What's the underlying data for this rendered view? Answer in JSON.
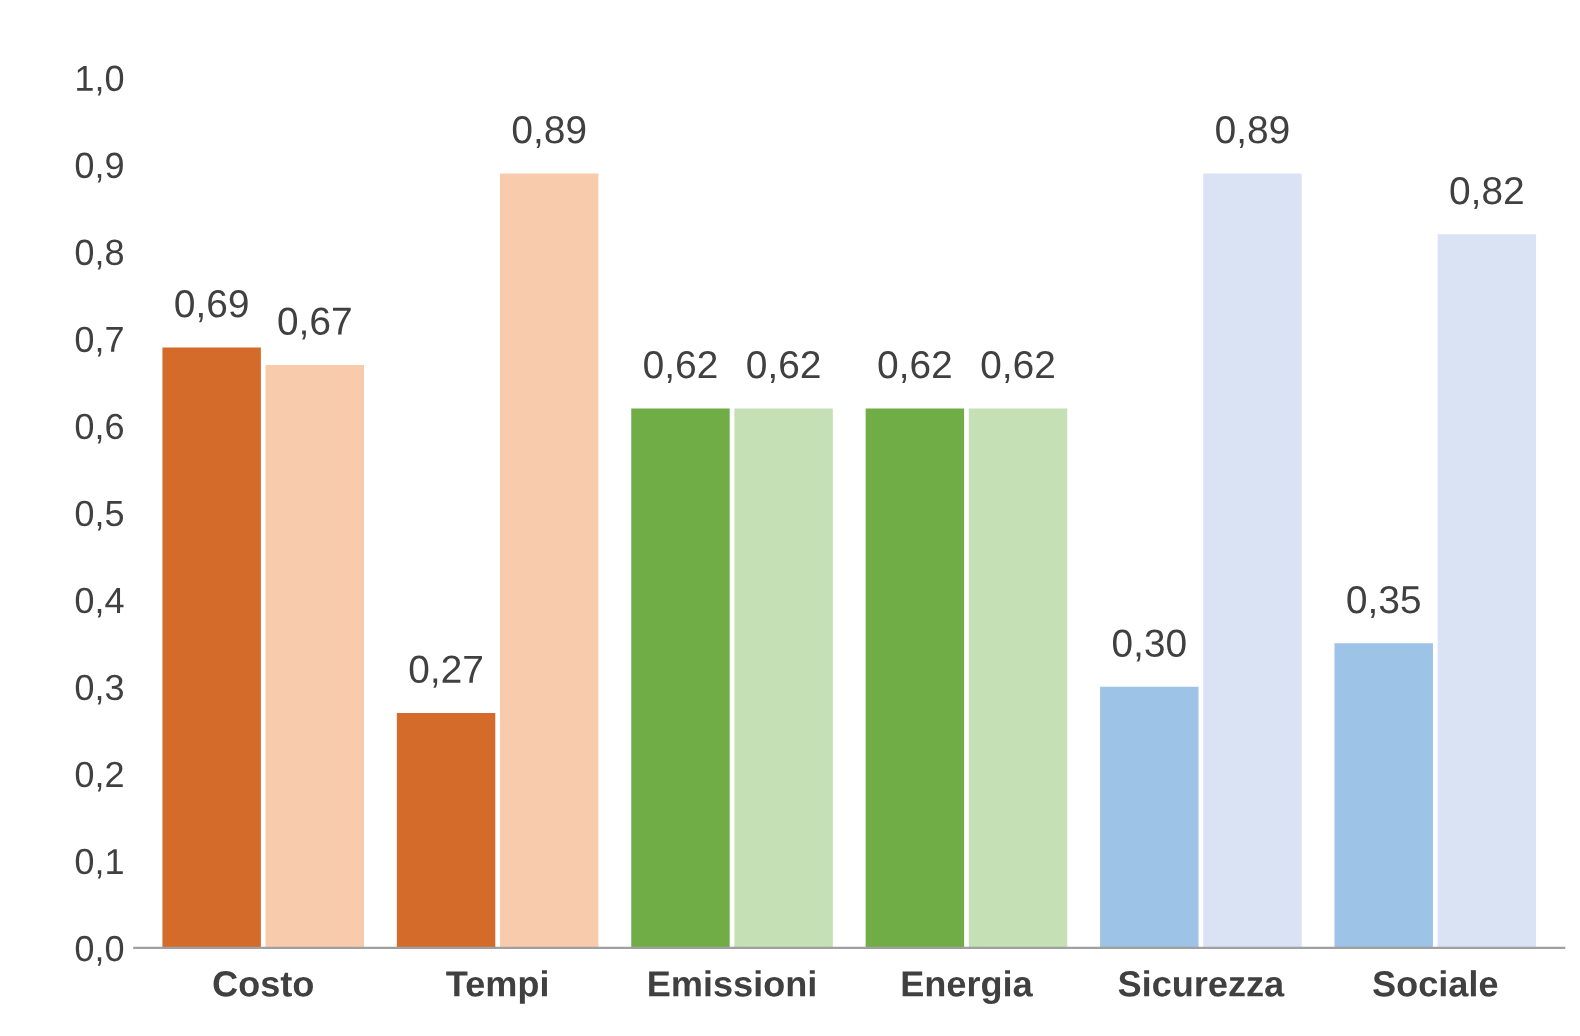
{
  "chart_data": {
    "type": "bar",
    "categories": [
      "Costo",
      "Tempi",
      "Emissioni",
      "Energia",
      "Sicurezza",
      "Sociale"
    ],
    "series": [
      {
        "values": [
          0.69,
          0.27,
          0.62,
          0.62,
          0.3,
          0.35
        ],
        "colors": [
          "#d46b2a",
          "#d46b2a",
          "#70ad47",
          "#70ad47",
          "#9dc3e6",
          "#9dc3e6"
        ],
        "value_labels": [
          "0,69",
          "0,27",
          "0,62",
          "0,62",
          "0,30",
          "0,35"
        ]
      },
      {
        "values": [
          0.67,
          0.89,
          0.62,
          0.62,
          0.89,
          0.82
        ],
        "colors": [
          "#f8cbad",
          "#f8cbad",
          "#c5e0b4",
          "#c5e0b4",
          "#dae3f3",
          "#dae3f3"
        ],
        "value_labels": [
          "0,67",
          "0,89",
          "0,62",
          "0,62",
          "0,89",
          "0,82"
        ]
      }
    ],
    "ylim": [
      0,
      1.0
    ],
    "yticks": [
      {
        "value": 0,
        "label": "0,0"
      },
      {
        "value": 0.1,
        "label": "0,1"
      },
      {
        "value": 0.2,
        "label": "0,2"
      },
      {
        "value": 0.3,
        "label": "0,3"
      },
      {
        "value": 0.4,
        "label": "0,4"
      },
      {
        "value": 0.5,
        "label": "0,5"
      },
      {
        "value": 0.6,
        "label": "0,6"
      },
      {
        "value": 0.7,
        "label": "0,7"
      },
      {
        "value": 0.8,
        "label": "0,8"
      },
      {
        "value": 0.9,
        "label": "0,9"
      },
      {
        "value": 1.0,
        "label": "1,0"
      }
    ],
    "grid": false,
    "legend": false
  }
}
